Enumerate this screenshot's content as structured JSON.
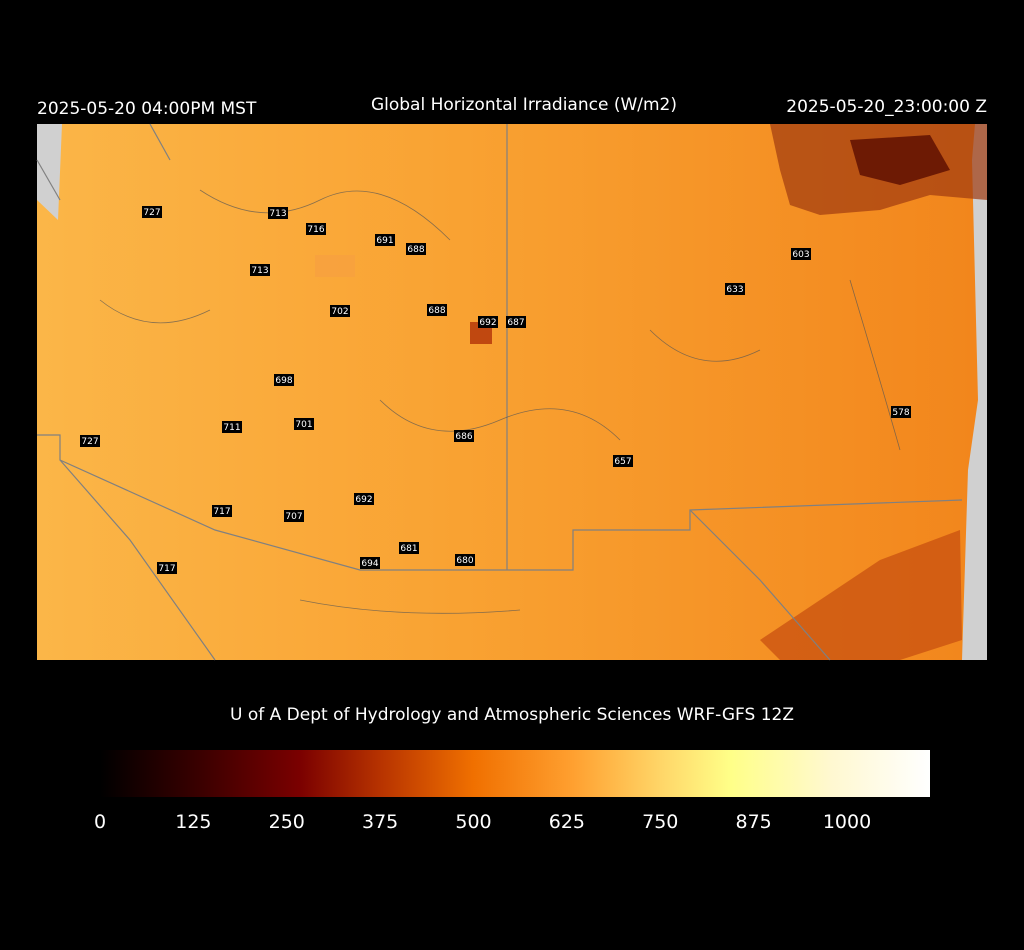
{
  "header": {
    "left": "2025-05-20 04:00PM MST",
    "title": "Global Horizontal Irradiance (W/m2)",
    "right": "2025-05-20_23:00:00 Z"
  },
  "credit": "U of A Dept of Hydrology and Atmospheric Sciences WRF-GFS 12Z",
  "colorbar": {
    "ticks": [
      0,
      125,
      250,
      375,
      500,
      625,
      750,
      875,
      1000
    ]
  },
  "stations": [
    727,
    713,
    716,
    691,
    688,
    713,
    603,
    633,
    702,
    688,
    692,
    687,
    698,
    578,
    711,
    701,
    686,
    727,
    657,
    692,
    717,
    707,
    681,
    694,
    680,
    717
  ]
}
